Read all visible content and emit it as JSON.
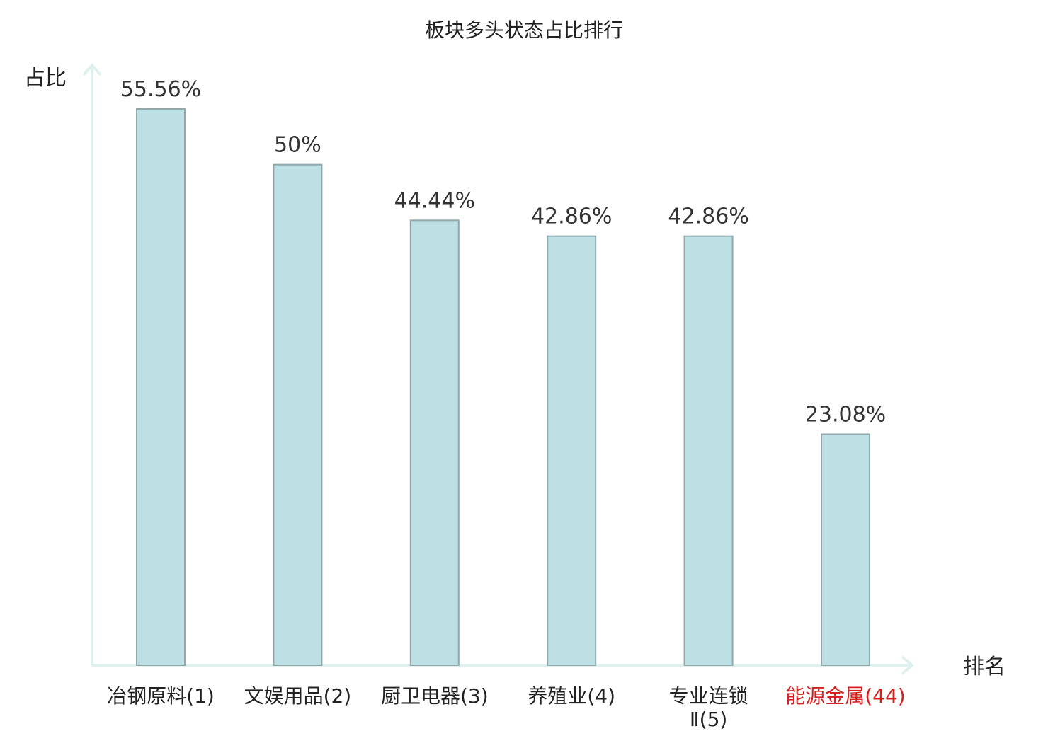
{
  "chart_data": {
    "type": "bar",
    "title": "板块多头状态占比排行",
    "ylabel": "占比",
    "xlabel": "排名",
    "ylim": [
      0,
      60
    ],
    "categories": [
      [
        "冶钢原料(1)"
      ],
      [
        "文娱用品(2)"
      ],
      [
        "厨卫电器(3)"
      ],
      [
        "养殖业(4)"
      ],
      [
        "专业连锁",
        "Ⅱ(5)"
      ],
      [
        "能源金属(44)"
      ]
    ],
    "values": [
      55.56,
      50,
      44.44,
      42.86,
      42.86,
      23.08
    ],
    "value_labels": [
      "55.56%",
      "50%",
      "44.44%",
      "42.86%",
      "42.86%",
      "23.08%"
    ],
    "highlight_index": 5,
    "colors": {
      "bar_fill": "#bce0e3",
      "bar_stroke": "#8fa9ab",
      "axis": "#dff1ef",
      "highlight_text": "#d42020"
    },
    "grid": false
  }
}
